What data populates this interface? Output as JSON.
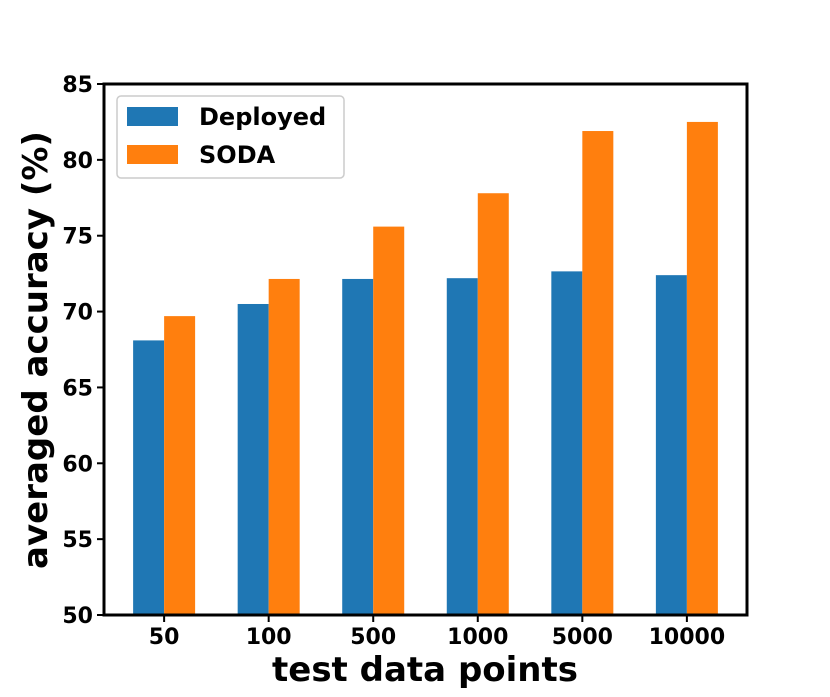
{
  "chart_data": {
    "type": "bar",
    "title": "",
    "xlabel": "test data points",
    "ylabel": "averaged accuracy (%)",
    "categories": [
      "50",
      "100",
      "500",
      "1000",
      "5000",
      "10000"
    ],
    "series": [
      {
        "name": "Deployed",
        "color": "#1f77b4",
        "values": [
          68.1,
          70.5,
          72.15,
          72.2,
          72.65,
          72.4
        ]
      },
      {
        "name": "SODA",
        "color": "#ff7f0e",
        "values": [
          69.7,
          72.15,
          75.6,
          77.8,
          81.9,
          82.5
        ]
      }
    ],
    "ylim": [
      50,
      85
    ],
    "yticks": [
      50,
      55,
      60,
      65,
      70,
      75,
      80,
      85
    ],
    "grid": false,
    "legend_position": "top-left"
  }
}
